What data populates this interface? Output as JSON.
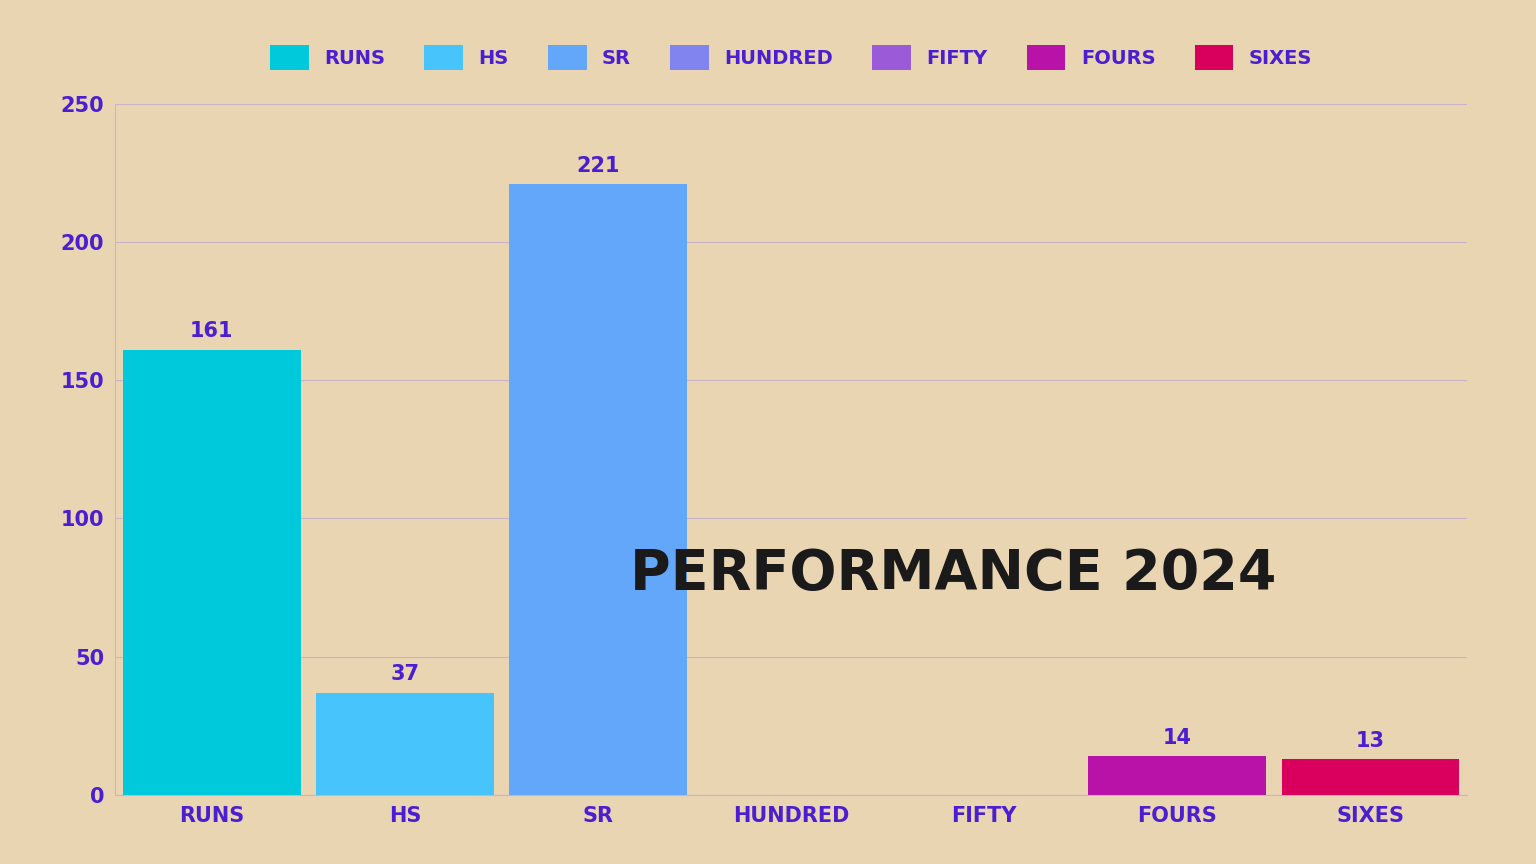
{
  "chart_data": {
    "type": "bar",
    "annotation": "PERFORMANCE 2024",
    "categories": [
      "RUNS",
      "HS",
      "SR",
      "HUNDRED",
      "FIFTY",
      "FOURS",
      "SIXES"
    ],
    "values": [
      161,
      37,
      221,
      0,
      0,
      14,
      13
    ],
    "value_labels": [
      "161",
      "37",
      "221",
      null,
      null,
      "14",
      "13"
    ],
    "colors": [
      "#00c9db",
      "#47c4fb",
      "#63a7fb",
      "#8184ee",
      "#9b5bd8",
      "#b812a8",
      "#d8005c"
    ],
    "ylim": [
      0,
      250
    ],
    "yticks": [
      0,
      50,
      100,
      150,
      200,
      250
    ],
    "grid": true,
    "legend": "upper center",
    "data_labels": true
  }
}
